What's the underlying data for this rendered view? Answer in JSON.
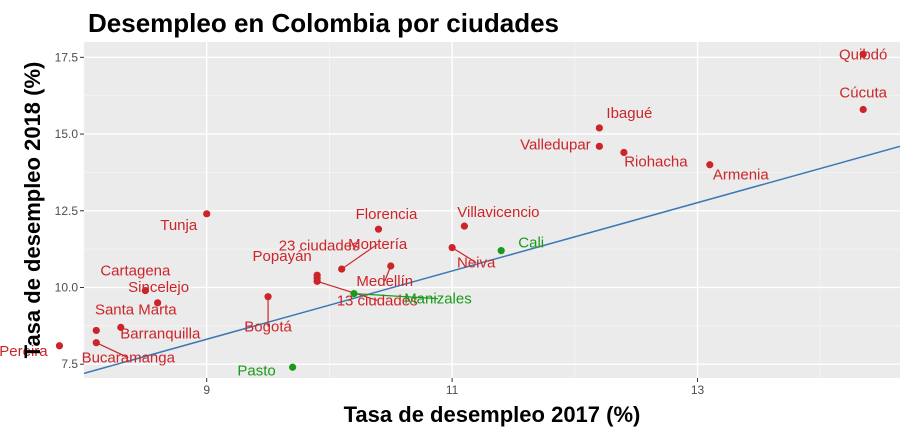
{
  "chart_data": {
    "type": "scatter",
    "title": "Desempleo en Colombia por ciudades",
    "xlabel": "Tasa de desempleo 2017 (%)",
    "ylabel": "Tasa de desempleo 2018 (%)",
    "xlim": [
      8.0,
      14.65
    ],
    "ylim": [
      7.05,
      18.0
    ],
    "xticks": [
      9,
      11,
      13
    ],
    "xtick_labels": [
      "9",
      "11",
      "13"
    ],
    "yticks": [
      7.5,
      10.0,
      12.5,
      15.0,
      17.5
    ],
    "ytick_labels": [
      "7.5",
      "10.0",
      "12.5",
      "15.0",
      "17.5"
    ],
    "grid": true,
    "trend_line": {
      "x": [
        8.0,
        14.65
      ],
      "y": [
        7.2,
        14.6
      ],
      "color": "#3a78b5"
    },
    "colors": {
      "red": "#cc2529",
      "green": "#1a9a1a",
      "panel": "#ebebeb"
    },
    "points": [
      {
        "name": "Quibdó",
        "x": 14.35,
        "y": 17.6,
        "color": "#cc2529"
      },
      {
        "name": "Cúcuta",
        "x": 14.35,
        "y": 15.8,
        "color": "#cc2529"
      },
      {
        "name": "Ibagué",
        "x": 12.2,
        "y": 15.2,
        "color": "#cc2529"
      },
      {
        "name": "Valledupar",
        "x": 12.2,
        "y": 14.6,
        "color": "#cc2529"
      },
      {
        "name": "Riohacha",
        "x": 12.4,
        "y": 14.4,
        "color": "#cc2529"
      },
      {
        "name": "Armenia",
        "x": 13.1,
        "y": 14.0,
        "color": "#cc2529"
      },
      {
        "name": "Tunja",
        "x": 9.0,
        "y": 12.4,
        "color": "#cc2529"
      },
      {
        "name": "Florencia",
        "x": 10.4,
        "y": 11.9,
        "color": "#cc2529"
      },
      {
        "name": "Villavicencio",
        "x": 11.1,
        "y": 12.0,
        "color": "#cc2529"
      },
      {
        "name": "23 ciudades",
        "x": 9.9,
        "y": 10.3,
        "color": "#cc2529"
      },
      {
        "name": "Montería",
        "x": 10.1,
        "y": 10.6,
        "color": "#cc2529"
      },
      {
        "name": "Cali",
        "x": 11.4,
        "y": 11.2,
        "color": "#1a9a1a"
      },
      {
        "name": "Neiva",
        "x": 11.0,
        "y": 11.3,
        "color": "#cc2529"
      },
      {
        "name": "Popayán",
        "x": 9.9,
        "y": 10.4,
        "color": "#cc2529"
      },
      {
        "name": "Medellín",
        "x": 10.5,
        "y": 10.7,
        "color": "#cc2529"
      },
      {
        "name": "Cartagena",
        "x": 8.5,
        "y": 9.9,
        "color": "#cc2529"
      },
      {
        "name": "Sincelejo",
        "x": 8.6,
        "y": 9.5,
        "color": "#cc2529"
      },
      {
        "name": "13 ciudades",
        "x": 9.9,
        "y": 10.2,
        "color": "#cc2529"
      },
      {
        "name": "Manizales",
        "x": 10.2,
        "y": 9.8,
        "color": "#1a9a1a"
      },
      {
        "name": "Santa Marta",
        "x": 8.3,
        "y": 8.7,
        "color": "#cc2529"
      },
      {
        "name": "Bogotá",
        "x": 9.5,
        "y": 9.7,
        "color": "#cc2529"
      },
      {
        "name": "Barranquilla",
        "x": 8.1,
        "y": 8.6,
        "color": "#cc2529"
      },
      {
        "name": "Bucaramanga",
        "x": 8.1,
        "y": 8.2,
        "color": "#cc2529"
      },
      {
        "name": "Pereira",
        "x": 7.8,
        "y": 8.1,
        "color": "#cc2529"
      },
      {
        "name": "Pasto",
        "x": 9.7,
        "y": 7.4,
        "color": "#1a9a1a"
      }
    ]
  }
}
